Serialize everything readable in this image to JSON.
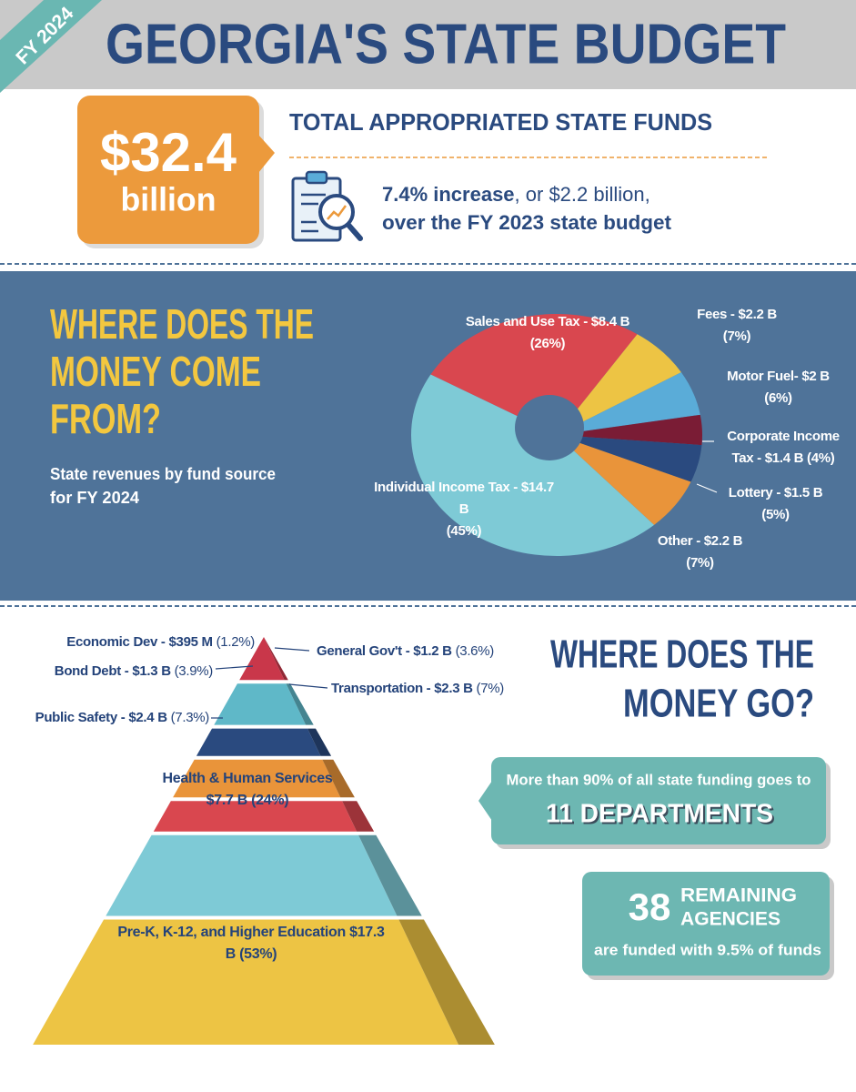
{
  "header": {
    "badge": "FY 2024",
    "title": "GEORGIA'S STATE BUDGET"
  },
  "total": {
    "amount": "$32.4",
    "unit": "billion",
    "heading": "TOTAL APPROPRIATED STATE FUNDS",
    "increase_bold": "7.4% increase",
    "increase_rest": ", or $2.2 billion,",
    "increase_line2": "over the FY 2023 state budget"
  },
  "sources": {
    "heading": [
      "WHERE DOES THE",
      "MONEY COME",
      "FROM?"
    ],
    "subtitle": [
      "State revenues by fund source",
      "for FY 2024"
    ]
  },
  "spending": {
    "heading": [
      "WHERE DOES THE",
      "MONEY GO?"
    ],
    "departments": {
      "text": "More than 90% of all state funding goes to",
      "highlight": "11 DEPARTMENTS"
    },
    "agencies": {
      "number": "38",
      "word1": "REMAINING",
      "word2": "AGENCIES",
      "text": "are funded with 9.5% of funds"
    }
  },
  "chart_data": [
    {
      "type": "pie",
      "categories": [
        "Sales and Use Tax - $8.4 B",
        "Fees - $2.2 B",
        "Motor Fuel- $2 B",
        "Corporate Income Tax - $1.4 B",
        "Lottery - $1.5 B",
        "Other - $2.2 B",
        "Individual Income Tax - $14.7 B"
      ],
      "values": [
        26,
        7,
        6,
        4,
        5,
        7,
        45
      ],
      "value_labels": [
        "(26%)",
        "(7%)",
        "(6%)",
        "(4%)",
        "(5%)",
        "(7%)",
        "(45%)"
      ],
      "colors": [
        "#d9474f",
        "#edc444",
        "#5aacd8",
        "#7a1c35",
        "#2a4a7f",
        "#e9943a",
        "#7ecad6"
      ]
    },
    {
      "type": "pyramid",
      "categories": [
        "Economic Dev - $395 M",
        "General Gov't - $1.2 B",
        "Bond Debt - $1.3 B",
        "Transportation - $2.3 B",
        "Public Safety - $2.4 B",
        "Health & Human Services $7.7 B",
        "Pre-K, K-12, and Higher Education $17.3 B"
      ],
      "values": [
        1.2,
        3.6,
        3.9,
        7,
        7.3,
        24,
        53
      ],
      "value_labels": [
        "(1.2%)",
        "(3.6%)",
        "(3.9%)",
        "(7%)",
        "(7.3%)",
        "(24%)",
        "(53%)"
      ],
      "colors": [
        "#c9374a",
        "#5fb8c8",
        "#2a4a7f",
        "#e9943a",
        "#d9474f",
        "#7ecad6",
        "#edc444"
      ]
    }
  ]
}
